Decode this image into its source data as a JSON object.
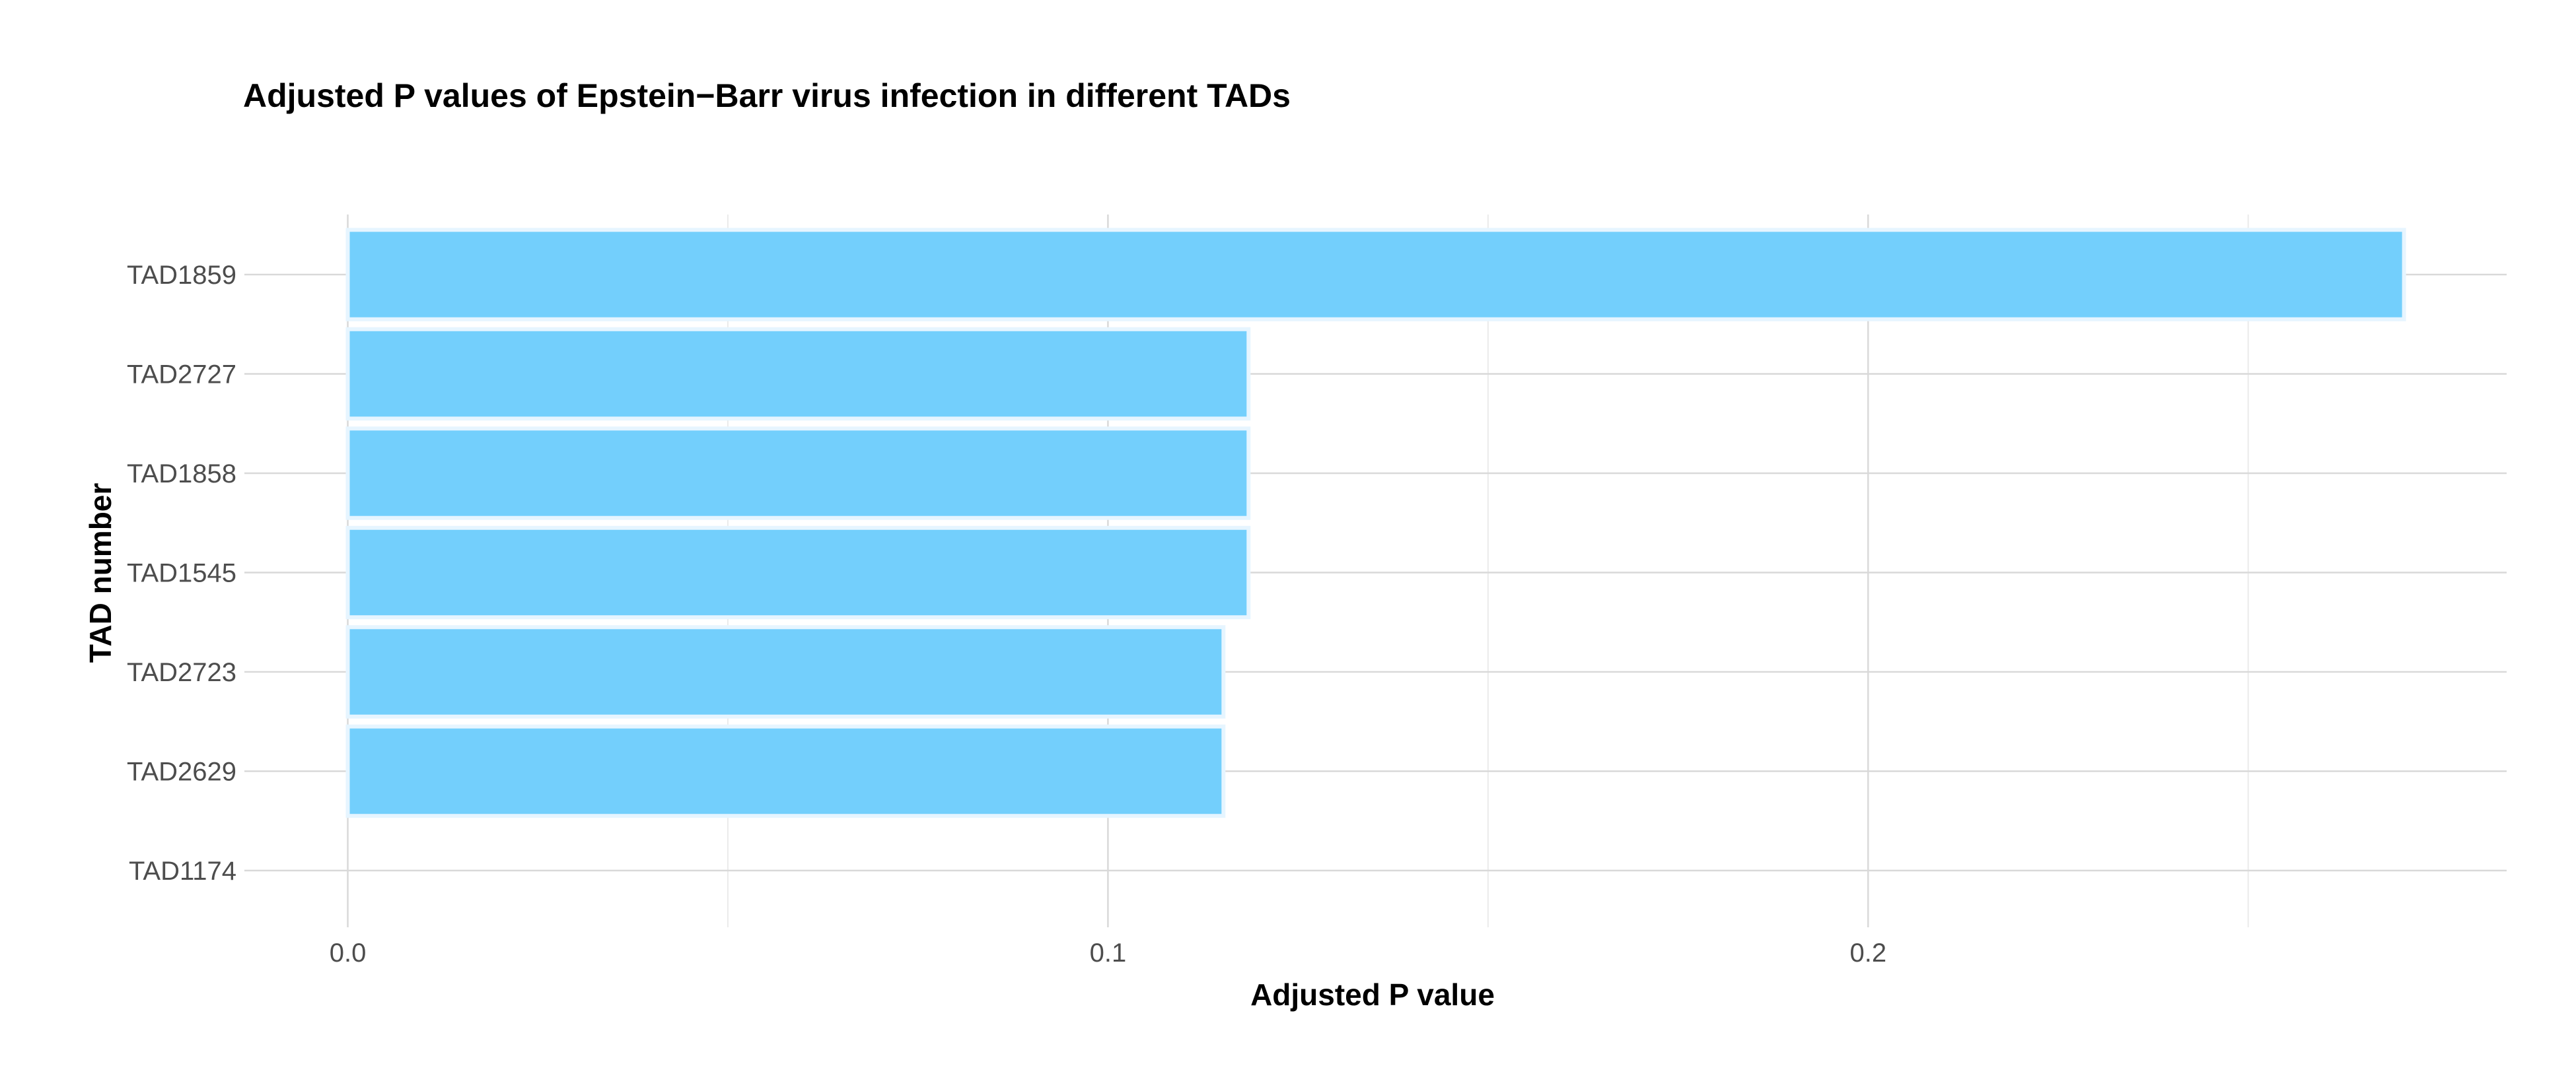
{
  "chart_data": {
    "type": "bar",
    "orientation": "horizontal",
    "title": "Adjusted P values of Epstein−Barr virus infection in different TADs",
    "xlabel": "Adjusted P value",
    "ylabel": "TAD number",
    "categories": [
      "TAD1859",
      "TAD2727",
      "TAD1858",
      "TAD1545",
      "TAD2723",
      "TAD2629",
      "TAD1174"
    ],
    "values": [
      0.2705,
      0.1185,
      0.1185,
      0.1185,
      0.1152,
      0.1152,
      0
    ],
    "xlim": [
      -0.0136,
      0.284
    ],
    "xticks": [
      0.0,
      0.1,
      0.2
    ],
    "xtick_labels": [
      "0.0",
      "0.1",
      "0.2"
    ],
    "grid": true,
    "legend": "none",
    "colors": {
      "bar_fill": "#73cffc",
      "bar_outline": "#e6f5ff"
    }
  }
}
